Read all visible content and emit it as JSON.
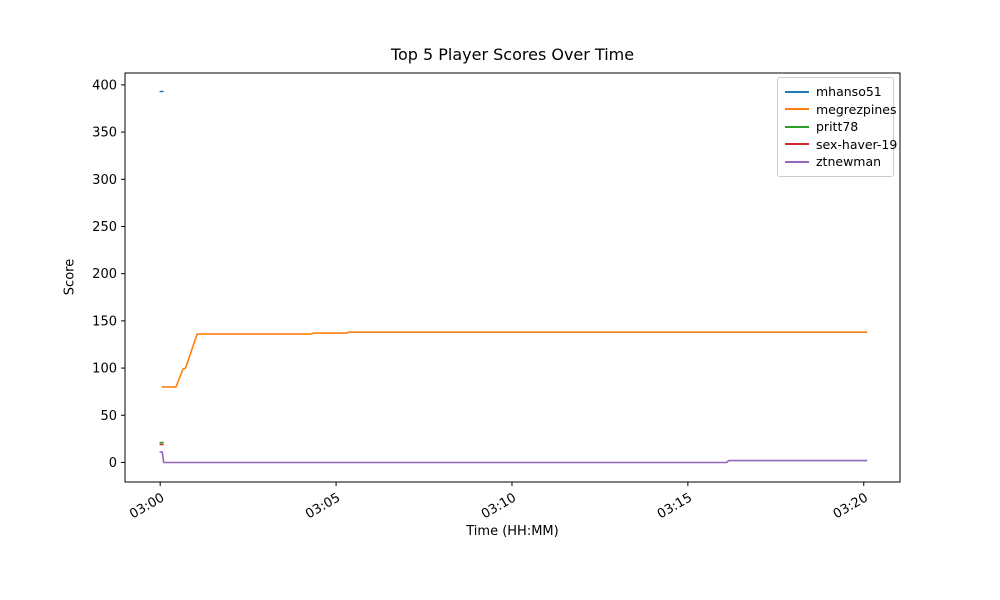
{
  "chart_data": {
    "type": "line",
    "title": "Top 5 Player Scores Over Time",
    "xlabel": "Time (HH:MM)",
    "ylabel": "Score",
    "grid": false,
    "legend_position": "upper right",
    "x_unit": "minutes after 03:00",
    "xlim": [
      -1.0,
      21.03
    ],
    "ylim": [
      -20.7,
      412.6
    ],
    "x_ticks": [
      {
        "label": "03:00",
        "value": 0
      },
      {
        "label": "03:05",
        "value": 5
      },
      {
        "label": "03:10",
        "value": 10
      },
      {
        "label": "03:15",
        "value": 15
      },
      {
        "label": "03:20",
        "value": 20
      }
    ],
    "y_ticks": [
      0,
      50,
      100,
      150,
      200,
      250,
      300,
      350,
      400
    ],
    "series": [
      {
        "name": "mhanso51",
        "color": "#1f77b4",
        "points": [
          [
            0,
            393
          ],
          [
            0.08,
            393
          ]
        ]
      },
      {
        "name": "megrezpines",
        "color": "#ff7f0e",
        "points": [
          [
            0.06,
            80
          ],
          [
            0.45,
            80
          ],
          [
            0.65,
            99
          ],
          [
            0.72,
            100
          ],
          [
            1.05,
            136
          ],
          [
            4.3,
            136
          ],
          [
            4.35,
            137
          ],
          [
            5.3,
            137
          ],
          [
            5.35,
            138
          ],
          [
            20.08,
            138
          ]
        ]
      },
      {
        "name": "pritt78",
        "color": "#2ca02c",
        "points": [
          [
            0,
            21
          ],
          [
            0.08,
            21
          ]
        ]
      },
      {
        "name": "sex-haver-19",
        "color": "#d62728",
        "points": [
          [
            0,
            19
          ],
          [
            0.08,
            19
          ]
        ]
      },
      {
        "name": "ztnewman",
        "color": "#9467bd",
        "points": [
          [
            0,
            11
          ],
          [
            0.06,
            11
          ],
          [
            0.1,
            0
          ],
          [
            16.1,
            0
          ],
          [
            16.16,
            2
          ],
          [
            20.08,
            2
          ]
        ]
      }
    ]
  }
}
